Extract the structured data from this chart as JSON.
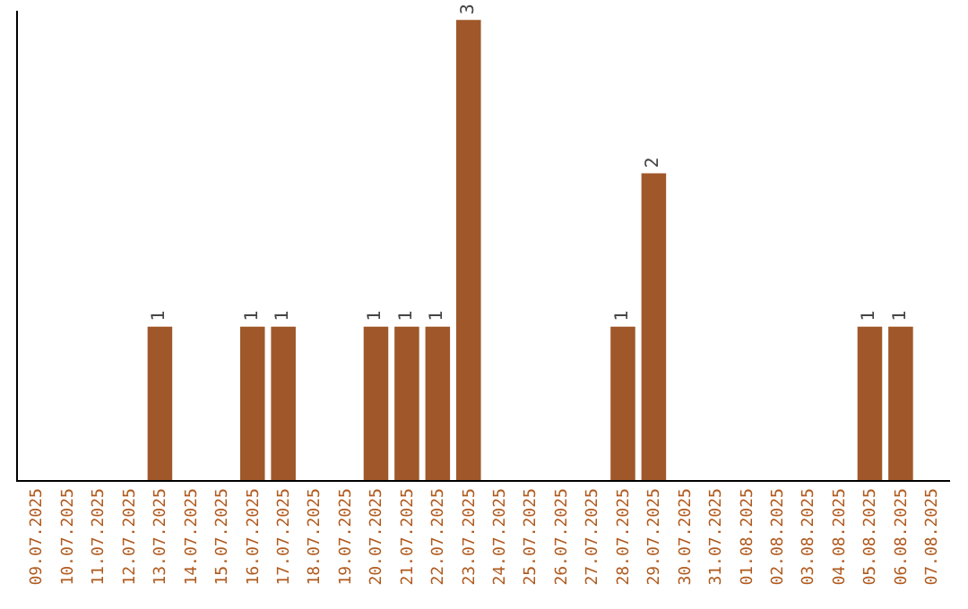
{
  "chart_data": {
    "type": "bar",
    "categories": [
      "09.07.2025",
      "10.07.2025",
      "11.07.2025",
      "12.07.2025",
      "13.07.2025",
      "14.07.2025",
      "15.07.2025",
      "16.07.2025",
      "17.07.2025",
      "18.07.2025",
      "19.07.2025",
      "20.07.2025",
      "21.07.2025",
      "22.07.2025",
      "23.07.2025",
      "24.07.2025",
      "25.07.2025",
      "26.07.2025",
      "27.07.2025",
      "28.07.2025",
      "29.07.2025",
      "30.07.2025",
      "31.07.2025",
      "01.08.2025",
      "02.08.2025",
      "03.08.2025",
      "04.08.2025",
      "05.08.2025",
      "06.08.2025",
      "07.08.2025"
    ],
    "values": [
      0,
      0,
      0,
      0,
      1,
      0,
      0,
      1,
      1,
      0,
      0,
      1,
      1,
      1,
      3,
      0,
      0,
      0,
      0,
      1,
      2,
      0,
      0,
      0,
      0,
      0,
      0,
      1,
      1,
      0
    ],
    "value_labels": [
      null,
      null,
      null,
      null,
      "1",
      null,
      null,
      "1",
      "1",
      null,
      null,
      "1",
      "1",
      "1",
      "3",
      null,
      null,
      null,
      null,
      "1",
      "2",
      null,
      null,
      null,
      null,
      null,
      null,
      "1",
      "1",
      null
    ],
    "color": "#a0582a",
    "ylim": [
      0,
      3.06
    ]
  }
}
